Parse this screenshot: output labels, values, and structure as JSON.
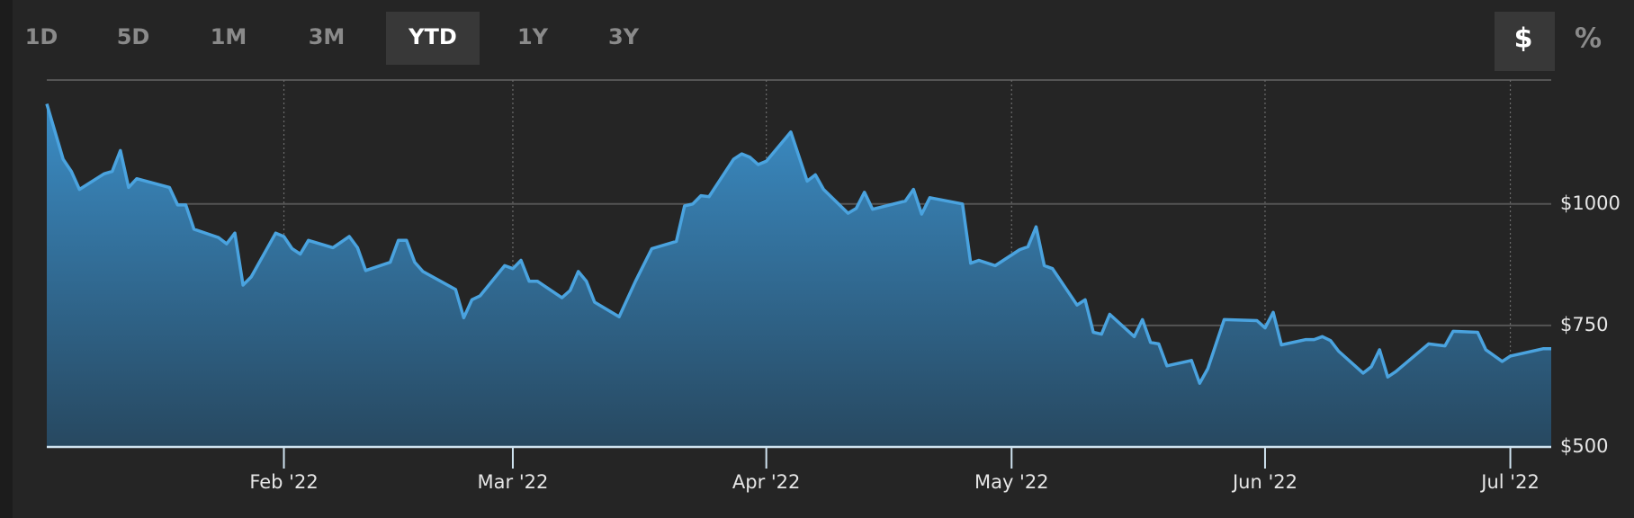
{
  "controls": {
    "ranges": [
      "1D",
      "5D",
      "1M",
      "3M",
      "YTD",
      "1Y",
      "3Y"
    ],
    "selected_range": "YTD",
    "units": [
      "$",
      "%"
    ],
    "selected_unit": "$"
  },
  "chart_data": {
    "type": "area",
    "color": "#4aa3df",
    "x": [
      2,
      4,
      5,
      6,
      9,
      10,
      11,
      12,
      13,
      17,
      18,
      19,
      20,
      23,
      24,
      25,
      26,
      27,
      30,
      31,
      32,
      33,
      34,
      37,
      39,
      40,
      41,
      44,
      45,
      46,
      47,
      48,
      52,
      53,
      54,
      55,
      58,
      59,
      60,
      61,
      62,
      65,
      66,
      67,
      68,
      69,
      72,
      74,
      76,
      79,
      80,
      81,
      82,
      83,
      86,
      87,
      88,
      89,
      90,
      93,
      95,
      96,
      97,
      100,
      101,
      102,
      103,
      107,
      108,
      109,
      110,
      114,
      115,
      116,
      118,
      121,
      122,
      123,
      124,
      125,
      128,
      129,
      130,
      131,
      132,
      135,
      136,
      137,
      138,
      139,
      142,
      143,
      144,
      146,
      150,
      151,
      152,
      153,
      156,
      157,
      158,
      159,
      160,
      163,
      164,
      165,
      166,
      167,
      171,
      173,
      174,
      177,
      178,
      180,
      181,
      185,
      186
    ],
    "values": [
      1206,
      1092,
      1067,
      1030,
      1062,
      1067,
      1110,
      1034,
      1052,
      1034,
      998,
      998,
      948,
      931,
      918,
      940,
      833,
      850,
      940,
      933,
      908,
      897,
      925,
      910,
      933,
      910,
      863,
      880,
      925,
      925,
      880,
      861,
      824,
      766,
      803,
      811,
      873,
      867,
      884,
      841,
      841,
      807,
      822,
      861,
      841,
      798,
      768,
      841,
      908,
      923,
      996,
      1000,
      1017,
      1015,
      1092,
      1103,
      1096,
      1081,
      1088,
      1148,
      1047,
      1060,
      1030,
      981,
      991,
      1024,
      989,
      1006,
      1030,
      979,
      1013,
      1000,
      878,
      884,
      873,
      906,
      912,
      953,
      873,
      867,
      792,
      803,
      736,
      732,
      773,
      727,
      762,
      715,
      712,
      667,
      678,
      631,
      661,
      762,
      760,
      745,
      777,
      710,
      721,
      721,
      727,
      719,
      697,
      652,
      665,
      700,
      644,
      655,
      712,
      708,
      738,
      736,
      700,
      676,
      687,
      702,
      702
    ],
    "xlim": [
      2,
      186
    ],
    "xticks": [
      {
        "value": 31,
        "label": "Feb '22"
      },
      {
        "value": 59,
        "label": "Mar '22"
      },
      {
        "value": 90,
        "label": "Apr '22"
      },
      {
        "value": 120,
        "label": "May '22"
      },
      {
        "value": 151,
        "label": "Jun '22"
      },
      {
        "value": 181,
        "label": "Jul '22"
      }
    ],
    "ylim": [
      500,
      1255
    ],
    "yticks": [
      {
        "value": 500,
        "label": "$500"
      },
      {
        "value": 750,
        "label": "$750"
      },
      {
        "value": 1000,
        "label": "$1000"
      }
    ],
    "grid": true
  }
}
